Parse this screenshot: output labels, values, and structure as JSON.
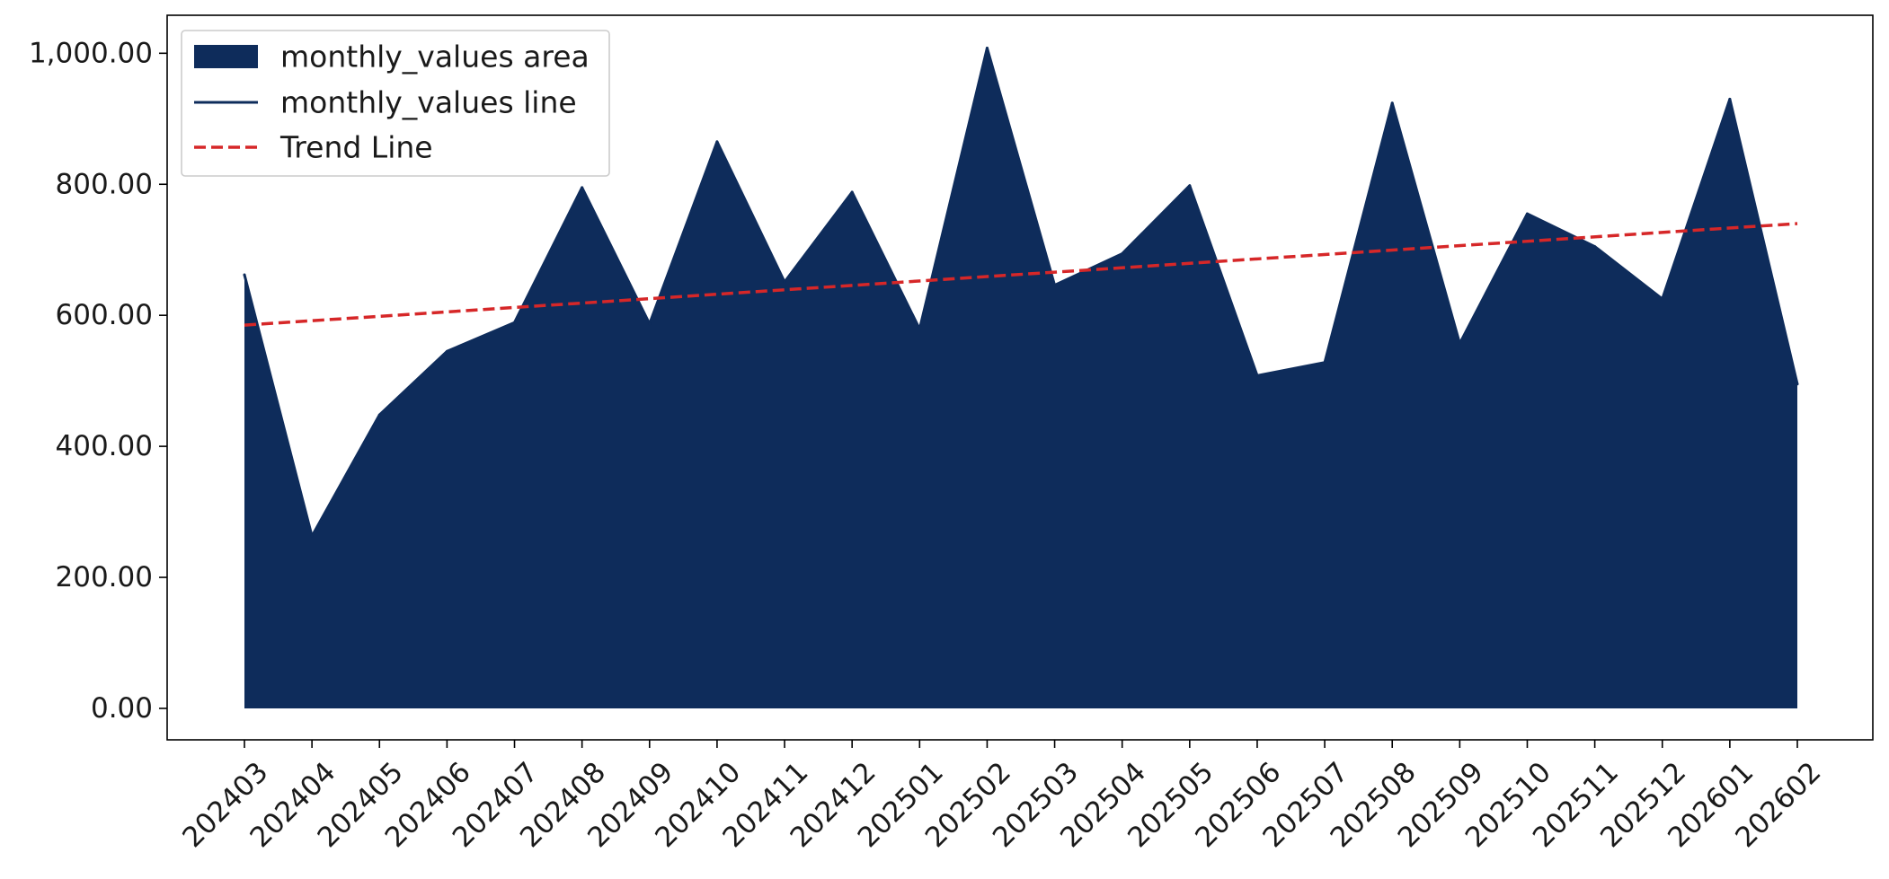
{
  "chart_data": {
    "type": "area",
    "categories": [
      "202403",
      "202404",
      "202405",
      "202406",
      "202407",
      "202408",
      "202409",
      "202410",
      "202411",
      "202412",
      "202501",
      "202502",
      "202503",
      "202504",
      "202505",
      "202506",
      "202507",
      "202508",
      "202509",
      "202510",
      "202511",
      "202512",
      "202601",
      "202602"
    ],
    "series": [
      {
        "name": "monthly_values area",
        "kind": "area",
        "color": "#0e2c5b",
        "values": [
          662,
          263,
          448,
          545,
          589,
          795,
          587,
          865,
          651,
          788,
          579,
          1008,
          646,
          694,
          798,
          508,
          528,
          924,
          557,
          755,
          705,
          625,
          930,
          495
        ]
      },
      {
        "name": "monthly_values line",
        "kind": "line",
        "color": "#0e2c5b",
        "values": [
          662,
          263,
          448,
          545,
          589,
          795,
          587,
          865,
          651,
          788,
          579,
          1008,
          646,
          694,
          798,
          508,
          528,
          924,
          557,
          755,
          705,
          625,
          930,
          495
        ]
      },
      {
        "name": "Trend Line",
        "kind": "trend",
        "color": "#d62728",
        "start": 585,
        "end": 740
      }
    ],
    "ylim": [
      -48,
      1058
    ],
    "yticks": [
      0,
      200,
      400,
      600,
      800,
      1000
    ],
    "ytick_labels": [
      "0.00",
      "200.00",
      "400.00",
      "600.00",
      "800.00",
      "1,000.00"
    ],
    "xlabel": "",
    "ylabel": "",
    "title": "",
    "grid": false,
    "legend": {
      "position": "top-left",
      "entries": [
        "monthly_values area",
        "monthly_values line",
        "Trend Line"
      ]
    }
  }
}
